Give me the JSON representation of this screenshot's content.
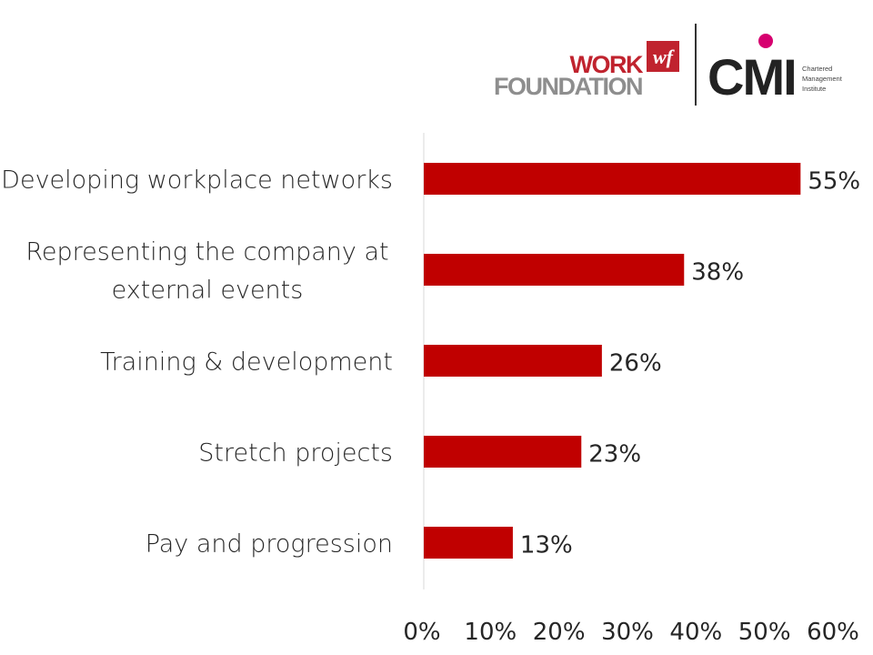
{
  "logos": {
    "work_foundation": {
      "line1": "WORK",
      "line2": "FOUNDATION",
      "mark": "wf",
      "colors": {
        "red": "#c0232e",
        "grey": "#8e8e8e"
      }
    },
    "cmi": {
      "wordmark": "CMI",
      "subtitle": [
        "Chartered",
        "Management",
        "Institute"
      ],
      "colors": {
        "text": "#222222",
        "dot": "#d6006f"
      }
    }
  },
  "chart_data": {
    "type": "bar",
    "orientation": "horizontal",
    "categories": [
      [
        "Developing workplace networks"
      ],
      [
        "Representing the company at",
        "external events"
      ],
      [
        "Training & development"
      ],
      [
        "Stretch projects"
      ],
      [
        "Pay and progression"
      ]
    ],
    "values": [
      55,
      38,
      26,
      23,
      13
    ],
    "value_labels": [
      "55%",
      "38%",
      "26%",
      "23%",
      "13%"
    ],
    "xlim": [
      0,
      60
    ],
    "xticks": [
      "0%",
      "10%",
      "20%",
      "30%",
      "40%",
      "50%",
      "60%"
    ],
    "grid": false,
    "bar_color": "#c00000"
  }
}
